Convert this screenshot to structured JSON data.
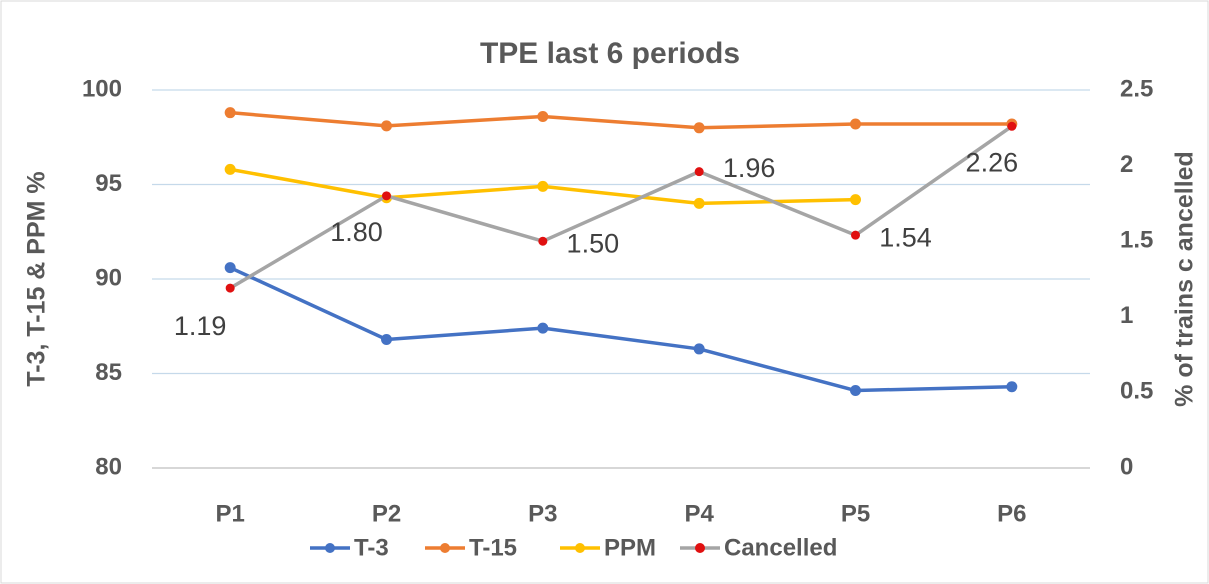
{
  "chart_data": {
    "type": "line",
    "title": "TPE last 6 periods",
    "y_label": "T-3, T-15 & PPM %",
    "y2_label": "% of trains c ancelled",
    "categories": [
      "P1",
      "P2",
      "P3",
      "P4",
      "P5",
      "P6"
    ],
    "series": [
      {
        "name": "T-3",
        "color": "#4472c4",
        "values": [
          90.6,
          86.8,
          87.4,
          86.3,
          84.1,
          84.3
        ]
      },
      {
        "name": "T-15",
        "color": "#ed7d31",
        "values": [
          98.8,
          98.1,
          98.6,
          98.0,
          98.2,
          98.2
        ]
      },
      {
        "name": "PPM",
        "color": "#ffc000",
        "values": [
          95.8,
          94.3,
          94.9,
          94.0,
          94.2,
          null
        ]
      },
      {
        "name": "Cancelled",
        "color": "#a5a5a5",
        "marker_color": "#e01010",
        "axis": "y2",
        "values": [
          1.19,
          1.8,
          1.5,
          1.96,
          1.54,
          2.26
        ],
        "value_labels": [
          "1.19",
          "1.80",
          "1.50",
          "1.96",
          "1.54",
          "2.26"
        ]
      }
    ],
    "ylim": [
      80,
      100
    ],
    "yticks": [
      80,
      85,
      90,
      95,
      100
    ],
    "y2lim": [
      0,
      2.5
    ],
    "y2ticks": [
      0,
      0.5,
      1,
      1.5,
      2,
      2.5
    ],
    "grid": true,
    "legend": "bottom"
  }
}
